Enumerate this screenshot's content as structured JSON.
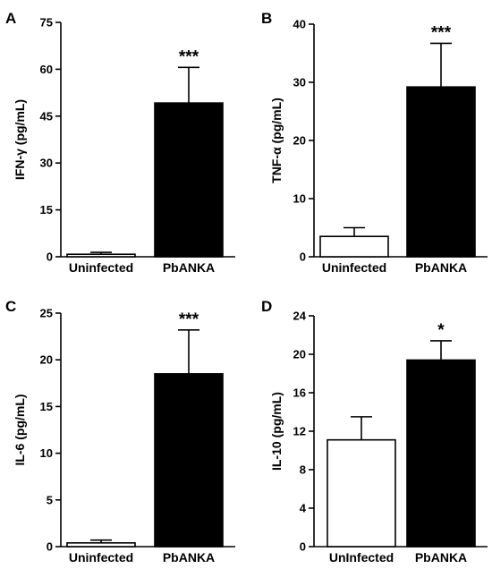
{
  "chart_data": [
    {
      "type": "bar",
      "panel": "A",
      "ylabel": "IFN-γ (pg/mL)",
      "ylim": [
        0,
        75
      ],
      "yticks": [
        0,
        15,
        30,
        45,
        60,
        75
      ],
      "categories": [
        "Uninfected",
        "PbANKA"
      ],
      "values": [
        0.8,
        49.2
      ],
      "errors": [
        0.6,
        11.4
      ],
      "bar_fills": [
        "#ffffff",
        "#000000"
      ],
      "significance": [
        "",
        "***"
      ]
    },
    {
      "type": "bar",
      "panel": "B",
      "ylabel": "TNF-α (pg/mL)",
      "ylim": [
        0,
        40
      ],
      "yticks": [
        0,
        10,
        20,
        30,
        40
      ],
      "categories": [
        "Uninfected",
        "PbANKA"
      ],
      "values": [
        3.5,
        29.2
      ],
      "errors": [
        1.5,
        7.5
      ],
      "bar_fills": [
        "#ffffff",
        "#000000"
      ],
      "significance": [
        "",
        "***"
      ]
    },
    {
      "type": "bar",
      "panel": "C",
      "ylabel": "IL-6 (pg/mL)",
      "ylim": [
        0,
        25
      ],
      "yticks": [
        0,
        5,
        10,
        15,
        20,
        25
      ],
      "categories": [
        "Uninfected",
        "PbANKA"
      ],
      "values": [
        0.4,
        18.5
      ],
      "errors": [
        0.3,
        4.7
      ],
      "bar_fills": [
        "#ffffff",
        "#000000"
      ],
      "significance": [
        "",
        "***"
      ]
    },
    {
      "type": "bar",
      "panel": "D",
      "ylabel": "IL-10 (pg/mL)",
      "ylim": [
        0,
        24
      ],
      "yticks": [
        0,
        4,
        8,
        12,
        16,
        20,
        24
      ],
      "categories": [
        "UnInfected",
        "PbANKA"
      ],
      "values": [
        11.1,
        19.4
      ],
      "errors": [
        2.4,
        2.0
      ],
      "bar_fills": [
        "#ffffff",
        "#000000"
      ],
      "significance": [
        "",
        "*"
      ]
    }
  ]
}
